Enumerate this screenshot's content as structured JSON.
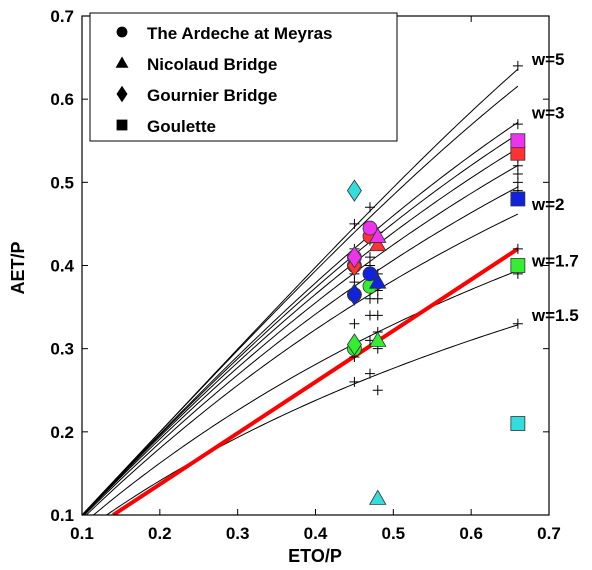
{
  "chart_data": {
    "type": "scatter",
    "title": "",
    "xlabel": "ETO/P",
    "ylabel": "AET/P",
    "xlim": [
      0.1,
      0.7
    ],
    "ylim": [
      0.1,
      0.7
    ],
    "xticks": [
      "0.1",
      "0.2",
      "0.3",
      "0.4",
      "0.5",
      "0.6",
      "0.7"
    ],
    "yticks": [
      "0.1",
      "0.2",
      "0.3",
      "0.4",
      "0.5",
      "0.6",
      "0.7"
    ],
    "grid": false,
    "legend_position": "top-left",
    "legend": [
      {
        "label": "The Ardeche at Meyras",
        "marker": "circle"
      },
      {
        "label": "Nicolaud Bridge",
        "marker": "triangle"
      },
      {
        "label": "Gournier Bridge",
        "marker": "diamond"
      },
      {
        "label": "Goulette",
        "marker": "square"
      }
    ],
    "curves": [
      {
        "w": 5,
        "label": "w=5",
        "color": "#000000"
      },
      {
        "w": 4,
        "label": "",
        "color": "#000000"
      },
      {
        "w": 3,
        "label": "w=3",
        "color": "#000000"
      },
      {
        "w": 2.8,
        "label": "",
        "color": "#000000"
      },
      {
        "w": 2.6,
        "label": "",
        "color": "#000000"
      },
      {
        "w": 2.4,
        "label": "",
        "color": "#000000"
      },
      {
        "w": 2.2,
        "label": "",
        "color": "#000000"
      },
      {
        "w": 2,
        "label": "w=2",
        "color": "#000000"
      },
      {
        "w": 1.7,
        "label": "w=1.7",
        "color": "#000000"
      },
      {
        "w": 1.5,
        "label": "w=1.5",
        "color": "#000000"
      }
    ],
    "red_line": {
      "color": "#ff0000",
      "points": [
        [
          0.14,
          0.1
        ],
        [
          0.66,
          0.42
        ]
      ]
    },
    "plus_points": [
      [
        0.45,
        0.26
      ],
      [
        0.45,
        0.29
      ],
      [
        0.45,
        0.33
      ],
      [
        0.45,
        0.36
      ],
      [
        0.45,
        0.37
      ],
      [
        0.45,
        0.38
      ],
      [
        0.45,
        0.39
      ],
      [
        0.45,
        0.4
      ],
      [
        0.45,
        0.42
      ],
      [
        0.45,
        0.45
      ],
      [
        0.47,
        0.27
      ],
      [
        0.47,
        0.31
      ],
      [
        0.47,
        0.34
      ],
      [
        0.47,
        0.36
      ],
      [
        0.47,
        0.38
      ],
      [
        0.47,
        0.4
      ],
      [
        0.47,
        0.41
      ],
      [
        0.47,
        0.43
      ],
      [
        0.47,
        0.44
      ],
      [
        0.47,
        0.47
      ],
      [
        0.48,
        0.25
      ],
      [
        0.48,
        0.3
      ],
      [
        0.48,
        0.32
      ],
      [
        0.48,
        0.34
      ],
      [
        0.48,
        0.36
      ],
      [
        0.48,
        0.37
      ],
      [
        0.48,
        0.38
      ],
      [
        0.48,
        0.39
      ],
      [
        0.48,
        0.43
      ],
      [
        0.48,
        0.44
      ],
      [
        0.66,
        0.33
      ],
      [
        0.66,
        0.39
      ],
      [
        0.66,
        0.42
      ],
      [
        0.66,
        0.48
      ],
      [
        0.66,
        0.49
      ],
      [
        0.66,
        0.5
      ],
      [
        0.66,
        0.51
      ],
      [
        0.66,
        0.52
      ],
      [
        0.66,
        0.53
      ],
      [
        0.66,
        0.57
      ],
      [
        0.66,
        0.64
      ]
    ],
    "series": [
      {
        "name": "The Ardeche at Meyras",
        "marker": "circle",
        "points": [
          {
            "x": 0.45,
            "y": 0.3,
            "color": "#33ee33"
          },
          {
            "x": 0.45,
            "y": 0.365,
            "color": "#1122dd"
          },
          {
            "x": 0.45,
            "y": 0.4,
            "color": "#ff3333"
          },
          {
            "x": 0.45,
            "y": 0.41,
            "color": "#ee33ee"
          },
          {
            "x": 0.47,
            "y": 0.375,
            "color": "#33ee33"
          },
          {
            "x": 0.47,
            "y": 0.39,
            "color": "#1122dd"
          },
          {
            "x": 0.47,
            "y": 0.435,
            "color": "#ff3333"
          },
          {
            "x": 0.47,
            "y": 0.445,
            "color": "#ee33ee"
          }
        ]
      },
      {
        "name": "Nicolaud Bridge",
        "marker": "triangle",
        "points": [
          {
            "x": 0.48,
            "y": 0.12,
            "color": "#33dddd"
          },
          {
            "x": 0.48,
            "y": 0.31,
            "color": "#33ee33"
          },
          {
            "x": 0.48,
            "y": 0.38,
            "color": "#1122dd"
          },
          {
            "x": 0.48,
            "y": 0.425,
            "color": "#ff3333"
          },
          {
            "x": 0.48,
            "y": 0.435,
            "color": "#ee33ee"
          }
        ]
      },
      {
        "name": "Gournier Bridge",
        "marker": "diamond",
        "points": [
          {
            "x": 0.45,
            "y": 0.49,
            "color": "#33dddd"
          },
          {
            "x": 0.45,
            "y": 0.305,
            "color": "#33ee33"
          },
          {
            "x": 0.45,
            "y": 0.365,
            "color": "#1122dd"
          },
          {
            "x": 0.45,
            "y": 0.4,
            "color": "#ff3333"
          },
          {
            "x": 0.45,
            "y": 0.41,
            "color": "#ee33ee"
          }
        ]
      },
      {
        "name": "Goulette",
        "marker": "square",
        "points": [
          {
            "x": 0.66,
            "y": 0.21,
            "color": "#33dddd"
          },
          {
            "x": 0.66,
            "y": 0.4,
            "color": "#33ee33"
          },
          {
            "x": 0.66,
            "y": 0.48,
            "color": "#1122dd"
          },
          {
            "x": 0.66,
            "y": 0.535,
            "color": "#ff3333"
          },
          {
            "x": 0.66,
            "y": 0.55,
            "color": "#ee33ee"
          }
        ]
      }
    ]
  }
}
